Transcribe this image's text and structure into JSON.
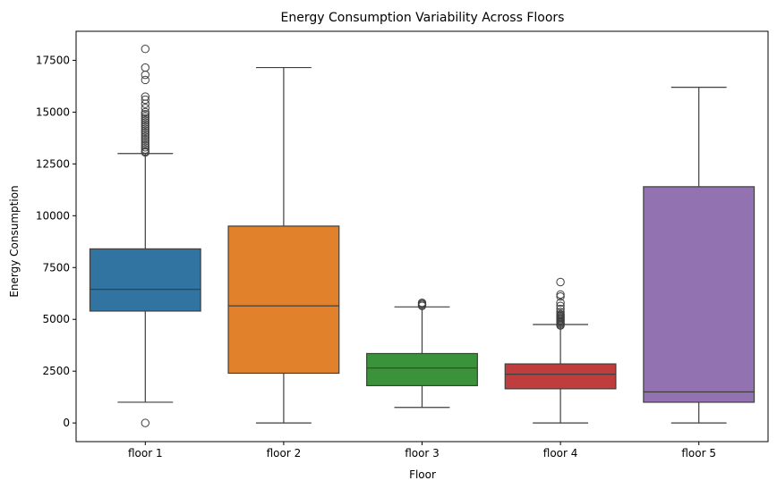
{
  "chart_data": {
    "type": "box",
    "title": "Energy Consumption Variability Across Floors",
    "xlabel": "Floor",
    "ylabel": "Energy Consumption",
    "ylim": [
      -900,
      18900
    ],
    "yticks": [
      0,
      2500,
      5000,
      7500,
      10000,
      12500,
      15000,
      17500
    ],
    "ytick_labels": [
      "0",
      "2500",
      "5000",
      "7500",
      "10000",
      "12500",
      "15000",
      "17500"
    ],
    "grid": false,
    "categories": [
      "floor 1",
      "floor 2",
      "floor 3",
      "floor 4",
      "floor 5"
    ],
    "boxes": [
      {
        "category": "floor 1",
        "color": "#3274a1",
        "whisker_low": 1000,
        "q1": 5400,
        "median": 6450,
        "q3": 8400,
        "whisker_high": 13000,
        "outliers": [
          0,
          13050,
          13100,
          13200,
          13300,
          13400,
          13500,
          13600,
          13700,
          13800,
          13900,
          14000,
          14100,
          14200,
          14300,
          14400,
          14500,
          14600,
          14700,
          14800,
          14900,
          15000,
          15200,
          15400,
          15600,
          15750,
          16550,
          16800,
          17150,
          18050
        ]
      },
      {
        "category": "floor 2",
        "color": "#e1812c",
        "whisker_low": 0,
        "q1": 2400,
        "median": 5650,
        "q3": 9500,
        "whisker_high": 17150,
        "outliers": []
      },
      {
        "category": "floor 3",
        "color": "#3a923a",
        "whisker_low": 750,
        "q1": 1800,
        "median": 2650,
        "q3": 3350,
        "whisker_high": 5600,
        "outliers": [
          5650,
          5700,
          5750,
          5800
        ]
      },
      {
        "category": "floor 4",
        "color": "#c03d3e",
        "whisker_low": 0,
        "q1": 1650,
        "median": 2350,
        "q3": 2850,
        "whisker_high": 4750,
        "outliers": [
          4700,
          4750,
          4800,
          4850,
          4900,
          4950,
          5000,
          5050,
          5100,
          5150,
          5200,
          5250,
          5350,
          5500,
          5650,
          5800,
          6100,
          6200,
          6800
        ]
      },
      {
        "category": "floor 5",
        "color": "#9372b2",
        "whisker_low": 0,
        "q1": 1000,
        "median": 1500,
        "q3": 11400,
        "whisker_high": 16200,
        "outliers": []
      }
    ]
  }
}
